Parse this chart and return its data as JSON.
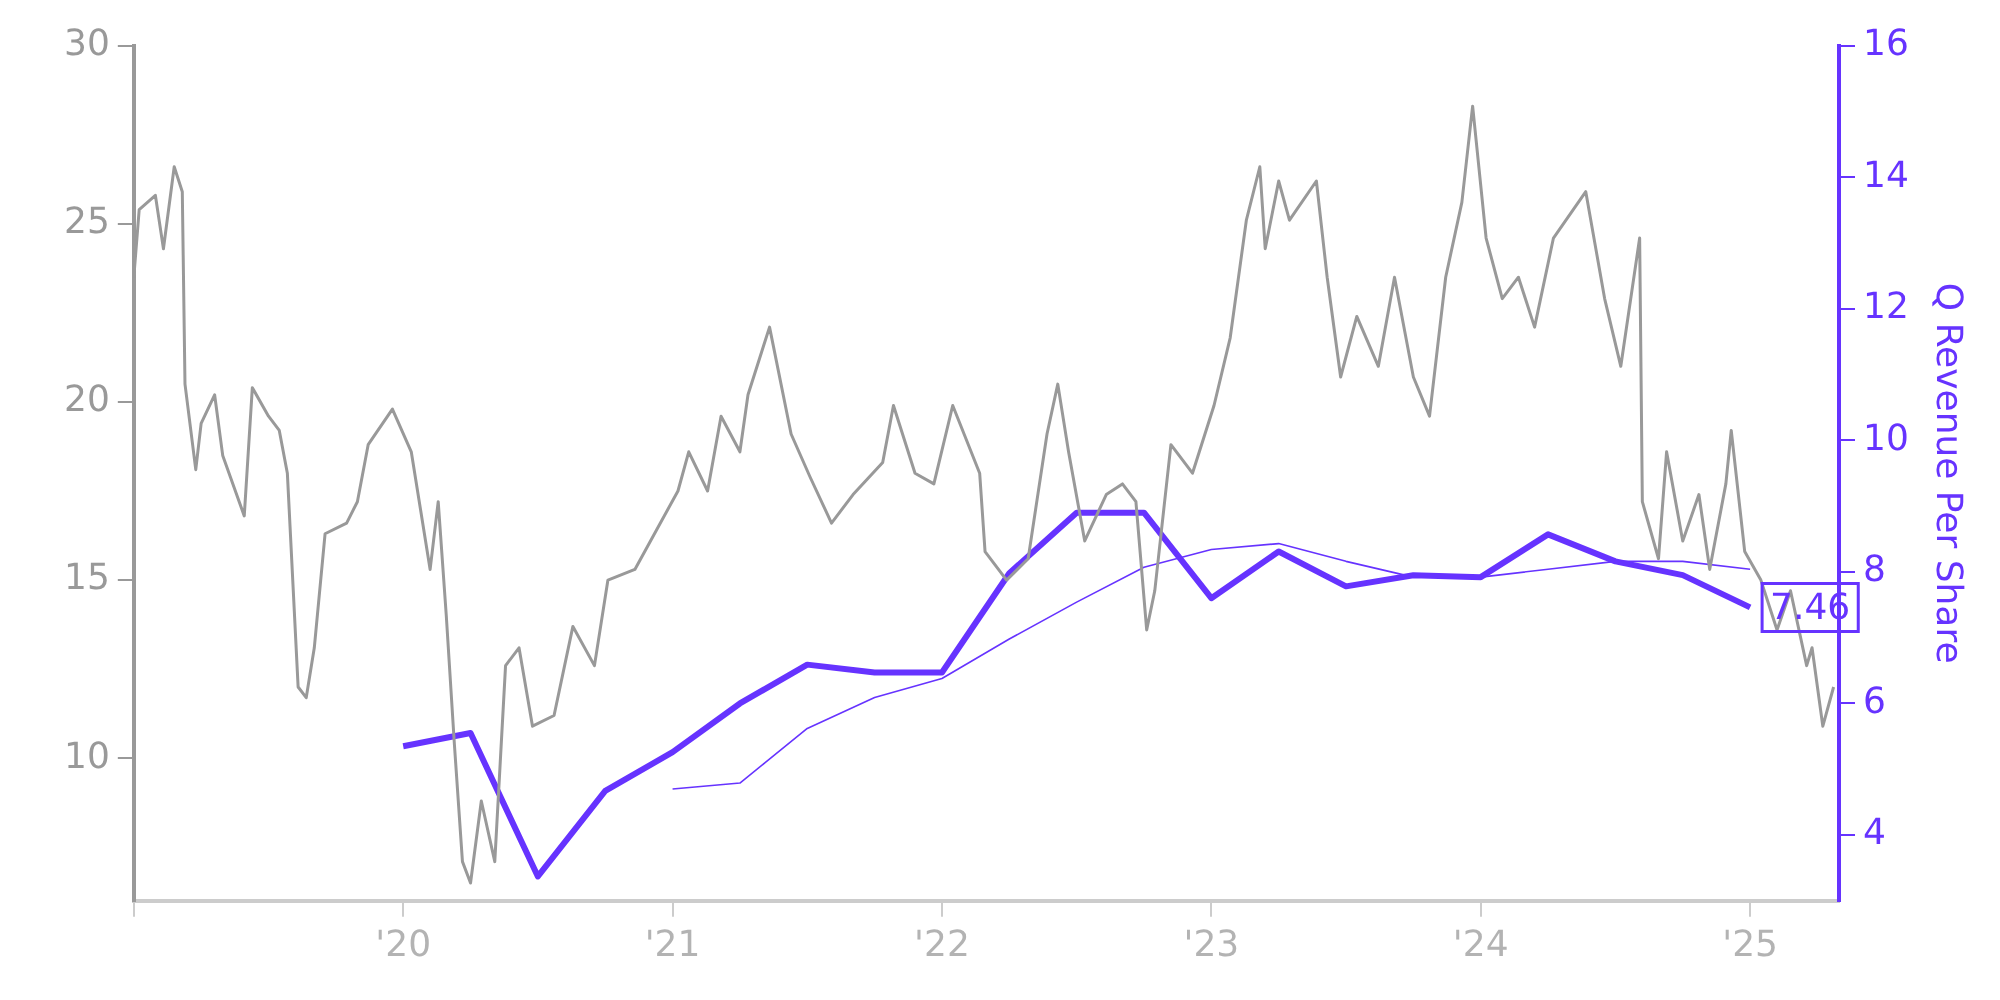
{
  "chart_data": {
    "type": "line",
    "y2label": "Q Revenue Per Share",
    "xlim": [
      2019,
      2025.33
    ],
    "xticks": [
      {
        "value": 2019,
        "label": null
      },
      {
        "value": 2020,
        "label": "'20"
      },
      {
        "value": 2021,
        "label": "'21"
      },
      {
        "value": 2022,
        "label": "'22"
      },
      {
        "value": 2023,
        "label": "'23"
      },
      {
        "value": 2024,
        "label": "'24"
      },
      {
        "value": 2025,
        "label": "'25"
      }
    ],
    "ylim": [
      6,
      30
    ],
    "yticks": [
      10,
      15,
      20,
      25,
      30
    ],
    "y2lim": [
      3,
      16
    ],
    "y2ticks": [
      4,
      6,
      8,
      10,
      12,
      14,
      16
    ],
    "grid": false,
    "legend": false,
    "marker": "none",
    "line_style": "solid",
    "series": [
      {
        "type": "line",
        "color": "#999999",
        "x": [
          2019.0,
          2019.02,
          2019.08,
          2019.11,
          2019.15,
          2019.18,
          2019.19,
          2019.23,
          2019.25,
          2019.3,
          2019.33,
          2019.41,
          2019.44,
          2019.5,
          2019.54,
          2019.57,
          2019.61,
          2019.64,
          2019.67,
          2019.71,
          2019.79,
          2019.83,
          2019.87,
          2019.96,
          2020.03,
          2020.1,
          2020.13,
          2020.16,
          2020.19,
          2020.22,
          2020.25,
          2020.29,
          2020.34,
          2020.38,
          2020.43,
          2020.48,
          2020.56,
          2020.63,
          2020.71,
          2020.76,
          2020.86,
          2020.94,
          2021.02,
          2021.06,
          2021.13,
          2021.18,
          2021.25,
          2021.28,
          2021.36,
          2021.44,
          2021.51,
          2021.59,
          2021.67,
          2021.78,
          2021.82,
          2021.9,
          2021.97,
          2022.04,
          2022.14,
          2022.16,
          2022.24,
          2022.32,
          2022.39,
          2022.43,
          2022.47,
          2022.53,
          2022.61,
          2022.67,
          2022.72,
          2022.76,
          2022.79,
          2022.85,
          2022.93,
          2023.01,
          2023.07,
          2023.13,
          2023.18,
          2023.2,
          2023.25,
          2023.29,
          2023.39,
          2023.43,
          2023.48,
          2023.54,
          2023.62,
          2023.68,
          2023.75,
          2023.81,
          2023.87,
          2023.93,
          2023.97,
          2024.02,
          2024.08,
          2024.14,
          2024.2,
          2024.27,
          2024.39,
          2024.46,
          2024.52,
          2024.59,
          2024.6,
          2024.66,
          2024.69,
          2024.75,
          2024.81,
          2024.85,
          2024.91,
          2024.93,
          2024.98,
          2025.04,
          2025.1,
          2025.15,
          2025.21,
          2025.23,
          2025.27,
          2025.31
        ],
        "values": [
          23.5,
          25.4,
          25.8,
          24.3,
          26.6,
          25.9,
          20.5,
          18.1,
          19.4,
          20.2,
          18.5,
          16.8,
          20.4,
          19.6,
          19.2,
          18,
          12,
          11.7,
          13.1,
          16.3,
          16.6,
          17.2,
          18.8,
          19.8,
          18.6,
          15.3,
          17.2,
          14,
          10.4,
          7.1,
          6.5,
          8.8,
          7.1,
          12.6,
          13.1,
          10.9,
          11.2,
          13.7,
          12.6,
          15,
          15.3,
          16.4,
          17.5,
          18.6,
          17.5,
          19.6,
          18.6,
          20.2,
          22.1,
          19.1,
          17.9,
          16.6,
          17.4,
          18.3,
          19.9,
          18,
          17.7,
          19.9,
          18,
          15.8,
          15,
          15.6,
          19.1,
          20.5,
          18.6,
          16.1,
          17.4,
          17.7,
          17.2,
          13.6,
          14.7,
          18.8,
          18,
          19.9,
          21.8,
          25.1,
          26.6,
          24.3,
          26.2,
          25.1,
          26.2,
          23.5,
          20.7,
          22.4,
          21,
          23.5,
          20.7,
          19.6,
          23.5,
          25.6,
          28.3,
          24.6,
          22.9,
          23.5,
          22.1,
          24.6,
          25.9,
          22.9,
          21,
          24.6,
          17.2,
          15.6,
          18.6,
          16.1,
          17.4,
          15.3,
          17.7,
          19.2,
          15.8,
          15,
          13.6,
          14.7,
          12.6,
          13.1,
          10.9,
          12
        ]
      },
      {
        "type": "line",
        "color": "#6633ff",
        "axis": "y2",
        "x": [
          2020,
          2020.25,
          2020.5,
          2020.75,
          2021,
          2021.25,
          2021.5,
          2021.75,
          2022,
          2022.25,
          2022.5,
          2022.75,
          2023,
          2023.25,
          2023.5,
          2023.75,
          2024,
          2024.25,
          2024.5,
          2024.75,
          2025
        ],
        "values": [
          5.35,
          5.55,
          3.37,
          4.67,
          5.26,
          6.0,
          6.59,
          6.47,
          6.47,
          7.98,
          8.9,
          8.9,
          7.6,
          8.31,
          7.78,
          7.95,
          7.92,
          8.57,
          8.16,
          7.95,
          7.46
        ],
        "value_labels": [
          null,
          null,
          null,
          null,
          null,
          null,
          null,
          null,
          null,
          null,
          null,
          null,
          null,
          null,
          null,
          null,
          null,
          null,
          null,
          null,
          "7.46"
        ]
      },
      {
        "type": "line",
        "color": "#6633ff",
        "axis": "y2",
        "x": [
          2021,
          2021.25,
          2021.5,
          2021.75,
          2022,
          2022.25,
          2022.5,
          2022.75,
          2023,
          2023.25,
          2023.5,
          2023.75,
          2024,
          2024.25,
          2024.5,
          2024.75,
          2025
        ],
        "values": [
          4.7,
          4.79,
          5.62,
          6.09,
          6.38,
          6.98,
          7.54,
          8.07,
          8.34,
          8.43,
          8.16,
          7.92,
          7.92,
          8.04,
          8.16,
          8.16,
          8.04
        ]
      }
    ]
  }
}
